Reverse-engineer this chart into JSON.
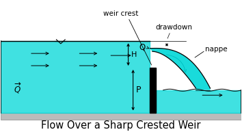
{
  "fig_width": 3.54,
  "fig_height": 1.93,
  "dpi": 100,
  "bg_color": "#ffffff",
  "water_color": "#00d8d8",
  "water_alpha": 0.75,
  "floor_color": "#bbbbbb",
  "title": "Flow Over a Sharp Crested Weir",
  "title_fontsize": 10.5,
  "weir_crest": "weir crest",
  "drawdown": "drawdown",
  "nappe": "nappe",
  "H_label": "H",
  "P_label": "P",
  "Q_label": "Q"
}
